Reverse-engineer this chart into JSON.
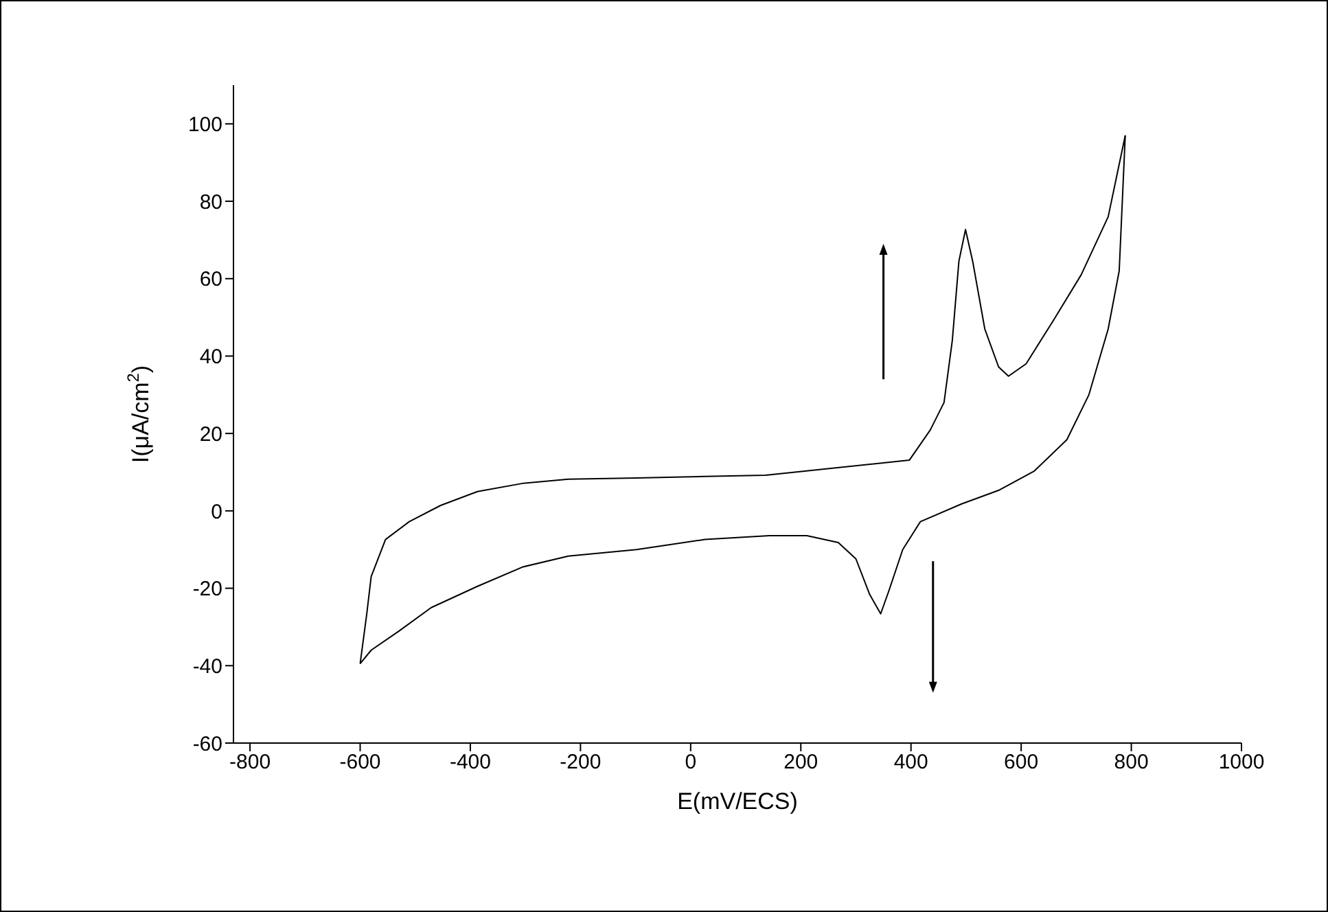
{
  "chart_data": {
    "type": "line",
    "xlabel": "E(mV/ECS)",
    "ylabel": "I(μA/cm$^{2}$)",
    "xlim": [
      -830,
      1000
    ],
    "xticks": [
      -800,
      -600,
      -400,
      -200,
      0,
      200,
      400,
      600,
      800,
      1000
    ],
    "ylim": [
      -60,
      110
    ],
    "yticks": [
      -60,
      -40,
      -20,
      0,
      20,
      40,
      60,
      80,
      100
    ],
    "grid": false,
    "series": [
      {
        "color": "#000000",
        "x": [
          -600,
          -588,
          -580,
          -554,
          -511,
          -454,
          -387,
          -305,
          -222,
          -98,
          26,
          136,
          397,
          435,
          460,
          475,
          487,
          499,
          512,
          534,
          559,
          577,
          609,
          659,
          709,
          758,
          789
        ],
        "values": [
          -39.5,
          -26.6,
          -17,
          -7.4,
          -2.8,
          1.4,
          5,
          7.1,
          8.2,
          8.5,
          8.9,
          9.2,
          13.1,
          20.9,
          28,
          44,
          64.5,
          72.7,
          64.5,
          47,
          37.2,
          34.8,
          38,
          49.3,
          61,
          76,
          97
        ]
      },
      {
        "color": "#000000",
        "x": [
          789,
          778,
          758,
          723,
          683,
          624,
          559,
          492,
          417,
          385,
          360,
          345,
          325,
          300,
          268,
          211,
          143,
          26,
          -98,
          -222,
          -305,
          -387,
          -471,
          -529,
          -580,
          -600
        ],
        "values": [
          97,
          62,
          47,
          30,
          18.4,
          10.3,
          5.3,
          1.8,
          -2.8,
          -10,
          -20.6,
          -26.6,
          -21.6,
          -12.4,
          -8.2,
          -6.4,
          -6.4,
          -7.4,
          -10,
          -11.7,
          -14.5,
          -19.5,
          -25,
          -31,
          -36,
          -39.5
        ]
      }
    ]
  }
}
